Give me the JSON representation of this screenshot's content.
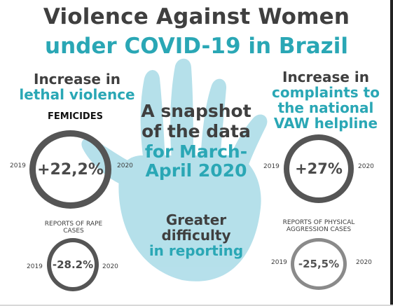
{
  "title": {
    "line1": "Violence Against Women",
    "line2": "under COVID-19 in Brazil"
  },
  "lethal": {
    "heading1": "Increase in",
    "heading2": "lethal violence",
    "label": "FEMICIDES",
    "value": "+22,2%",
    "year_left": "2019",
    "year_right": "2020"
  },
  "rape": {
    "label1": "REPORTS OF RAPE",
    "label2": "CASES",
    "value": "-28.2%",
    "year_left": "2019",
    "year_right": "2020"
  },
  "complaints": {
    "heading1": "Increase in",
    "heading2": "complaints to",
    "heading3": "the national",
    "heading4": "VAW helpline",
    "value": "+27%",
    "year_left": "2019",
    "year_right": "2020"
  },
  "physical": {
    "label1": "REPORTS OF PHYSICAL",
    "label2": "AGGRESSION CASES",
    "value": "-25,5%",
    "year_left": "2019",
    "year_right": "2020"
  },
  "snapshot": {
    "line1": "A snapshot",
    "line2": "of the data",
    "line3": "for March-",
    "line4": "April 2020"
  },
  "reporting": {
    "line1": "Greater",
    "line2": "difficulty",
    "line3": "in reporting"
  },
  "colors": {
    "teal": "#2aa7b5",
    "dark_gray": "#3f3f3f",
    "hand": "#a9dbe7",
    "ring_dark": "#555555",
    "ring_light": "#8a8a8a"
  },
  "icons": {
    "background": "handprint-icon"
  }
}
